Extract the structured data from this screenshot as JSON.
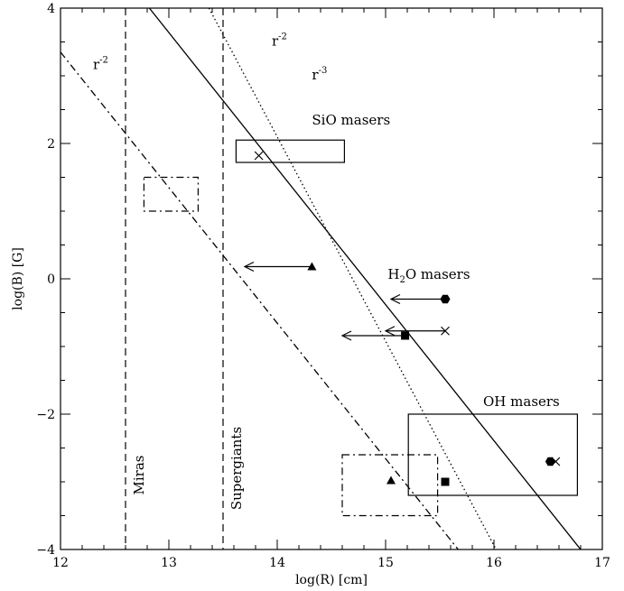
{
  "chart_data": {
    "type": "scatter",
    "xlabel": "log(R) [cm]",
    "ylabel": "log(B) [G]",
    "xlim": [
      12,
      17
    ],
    "ylim": [
      -4,
      4
    ],
    "x_ticks": [
      12,
      13,
      14,
      15,
      16,
      17
    ],
    "y_ticks": [
      -4,
      -2,
      0,
      2,
      4
    ],
    "grid": false,
    "vlines": [
      {
        "x": 12.6,
        "style": "dashed",
        "label": "Miras",
        "label_y": -2.9
      },
      {
        "x": 13.5,
        "style": "dashed",
        "label": "Supergiants",
        "label_y": -2.8
      }
    ],
    "lines": [
      {
        "style": "solid",
        "points": [
          [
            12.82,
            4.0
          ],
          [
            16.8,
            -4.0
          ]
        ],
        "label": "r",
        "label_exp": "-2",
        "label_at": [
          13.95,
          3.45
        ]
      },
      {
        "style": "dotted",
        "points": [
          [
            13.37,
            4.0
          ],
          [
            16.02,
            -4.0
          ]
        ],
        "label": "r",
        "label_exp": "-3",
        "label_at": [
          14.32,
          2.95
        ]
      },
      {
        "style": "dashdot",
        "points": [
          [
            12.0,
            3.35
          ],
          [
            15.67,
            -4.0
          ]
        ],
        "label": "r",
        "label_exp": "-2",
        "label_at": [
          12.3,
          3.1
        ]
      }
    ],
    "regions": [
      {
        "style": "solid",
        "x": [
          13.62,
          14.62
        ],
        "y": [
          1.72,
          2.05
        ]
      },
      {
        "style": "dashdot",
        "x": [
          12.77,
          13.27
        ],
        "y": [
          1.0,
          1.5
        ]
      },
      {
        "style": "solid",
        "x": [
          15.21,
          16.77
        ],
        "y": [
          -3.2,
          -2.0
        ]
      },
      {
        "style": "dashdot",
        "x": [
          14.6,
          15.48
        ],
        "y": [
          -3.5,
          -2.6
        ]
      }
    ],
    "annotations": [
      {
        "text": "SiO masers",
        "x": 14.32,
        "y": 2.28
      },
      {
        "text": "H",
        "sub": "2",
        "after": "O masers",
        "x": 15.02,
        "y": 0.0
      },
      {
        "text": "OH masers",
        "x": 15.9,
        "y": -1.88
      }
    ],
    "points": [
      {
        "marker": "cross",
        "x": 13.83,
        "y": 1.82
      },
      {
        "marker": "triangle",
        "x": 14.32,
        "y": 0.18,
        "upper_limit_to": 13.7
      },
      {
        "marker": "hexagon",
        "x": 15.55,
        "y": -0.3,
        "upper_limit_to": 15.05
      },
      {
        "marker": "cross",
        "x": 15.55,
        "y": -0.77,
        "upper_limit_to": 15.0
      },
      {
        "marker": "square",
        "x": 15.18,
        "y": -0.84,
        "upper_limit_to": 14.6
      },
      {
        "marker": "hexagon",
        "x": 16.52,
        "y": -2.7
      },
      {
        "marker": "cross",
        "x": 16.57,
        "y": -2.7
      },
      {
        "marker": "triangle",
        "x": 15.05,
        "y": -2.98
      },
      {
        "marker": "square",
        "x": 15.55,
        "y": -3.0
      }
    ]
  }
}
